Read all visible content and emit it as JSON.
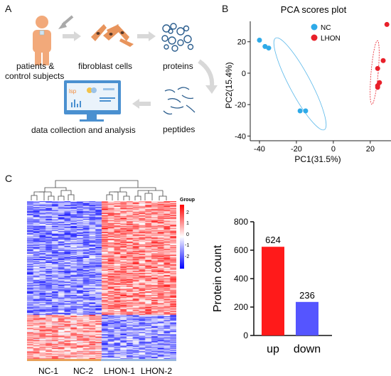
{
  "panels": {
    "a": "A",
    "b": "B",
    "c": "C"
  },
  "workflow": {
    "patients_line1": "patients &",
    "patients_line2": "control subjects",
    "fibroblast": "fibroblast cells",
    "proteins": "proteins",
    "peptides": "peptides",
    "analysis": "data collection and analysis"
  },
  "pca": {
    "title": "PCA scores plot",
    "xlabel": "PC1(31.5%)",
    "ylabel": "PC2(15.4%)",
    "legend": [
      "NC",
      "LHON"
    ],
    "colors": {
      "NC": "#2eaae8",
      "LHON": "#e8202a"
    },
    "xticks": [
      "-40",
      "-20",
      "0",
      "20"
    ],
    "yticks": [
      "20",
      "0",
      "-20",
      "-40"
    ]
  },
  "heatmap": {
    "legend_title": "Group",
    "legend_ticks": [
      "2",
      "1",
      "0",
      "-1",
      "-2"
    ],
    "groups": [
      "NC-1",
      "NC-2",
      "LHON-1",
      "LHON-2"
    ],
    "group_colors": [
      "#e8a25a",
      "#e8a25a",
      "#9ab8e0",
      "#9ab8e0"
    ]
  },
  "chart_data": [
    {
      "type": "scatter",
      "title": "PCA scores plot",
      "xlabel": "PC1(31.5%)",
      "ylabel": "PC2(15.4%)",
      "xlim": [
        -45,
        32
      ],
      "ylim": [
        -43,
        33
      ],
      "series": [
        {
          "name": "NC",
          "color": "#2eaae8",
          "x": [
            -40,
            -37,
            -35,
            -18,
            -15
          ],
          "y": [
            21,
            17,
            16,
            -24,
            -24
          ]
        },
        {
          "name": "LHON",
          "color": "#e8202a",
          "x": [
            29,
            27,
            24,
            25,
            24,
            24
          ],
          "y": [
            31,
            8,
            3,
            -6,
            -8,
            -9
          ]
        }
      ]
    },
    {
      "type": "bar",
      "title": "",
      "xlabel": "",
      "ylabel": "Protein count",
      "categories": [
        "up",
        "down"
      ],
      "values": [
        624,
        236
      ],
      "colors": [
        "#ff1a1a",
        "#5555ff"
      ],
      "ylim": [
        0,
        800
      ],
      "yticks": [
        0,
        200,
        400,
        600,
        800
      ]
    }
  ]
}
